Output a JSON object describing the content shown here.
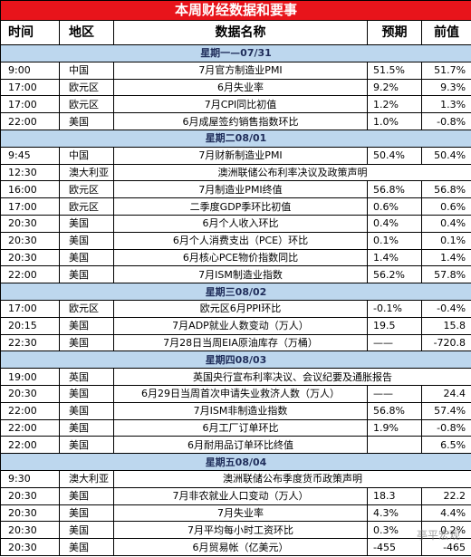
{
  "title": "本周财经数据和要事",
  "header": [
    "时间",
    "地区",
    "数据名称",
    "预期",
    "前值"
  ],
  "days": [
    {
      "label": "星期一—07/31",
      "rows": [
        [
          "9:00",
          "中国",
          "7月官方制造业PMI",
          "51.5%",
          "51.7%"
        ],
        [
          "17:00",
          "欧元区",
          "6月失业率",
          "9.2%",
          "9.3%"
        ],
        [
          "17:00",
          "欧元区",
          "7月CPI同比初值",
          "1.2%",
          "1.3%"
        ],
        [
          "22:00",
          "美国",
          "6月成屋签约销售指数环比",
          "1.0%",
          "-0.8%"
        ]
      ]
    },
    {
      "label": "星期二08/01",
      "rows": [
        [
          "9:45",
          "中国",
          "7月财新制造业PMI",
          "50.4%",
          "50.4%"
        ],
        [
          "12:30",
          "澳大利亚",
          "澳洲联储公布利率决议及政策声明"
        ],
        [
          "16:00",
          "欧元区",
          "7月制造业PMI终值",
          "56.8%",
          "56.8%"
        ],
        [
          "17:00",
          "欧元区",
          "二季度GDP季环比初值",
          "0.6%",
          "0.6%"
        ],
        [
          "20:30",
          "美国",
          "6月个人收入环比",
          "0.4%",
          "0.4%"
        ],
        [
          "20:30",
          "美国",
          "6月个人消费支出（PCE）环比",
          "0.1%",
          "0.1%"
        ],
        [
          "20:30",
          "美国",
          "6月核心PCE物价指数同比",
          "1.4%",
          "1.4%"
        ],
        [
          "22:00",
          "美国",
          "7月ISM制造业指数",
          "56.2%",
          "57.8%"
        ]
      ]
    },
    {
      "label": "星期三08/02",
      "rows": [
        [
          "17:00",
          "欧元区",
          "欧元区6月PPI环比",
          "-0.1%",
          "-0.4%"
        ],
        [
          "20:15",
          "美国",
          "7月ADP就业人数变动（万人）",
          "19.5",
          "15.8"
        ],
        [
          "22:30",
          "美国",
          "7月28日当周EIA原油库存（万桶）",
          "——",
          "-720.8"
        ]
      ]
    },
    {
      "label": "星期四08/03",
      "rows": [
        [
          "19:00",
          "英国",
          "英国央行宣布利率决议、会议纪要及通胀报告"
        ],
        [
          "20:30",
          "美国",
          "6月29日当周首次申请失业救济人数（万人）",
          "——",
          "24.4"
        ],
        [
          "22:00",
          "美国",
          "7月ISM非制造业指数",
          "56.8%",
          "57.4%"
        ],
        [
          "22:00",
          "美国",
          "6月工厂订单环比",
          "1.9%",
          "-0.8%"
        ],
        [
          "22:00",
          "美国",
          "6月耐用品订单环比终值",
          null,
          "6.5%"
        ]
      ]
    },
    {
      "label": "星期五08/04",
      "rows": [
        [
          "9:30",
          "澳大利亚",
          "澳洲联储公布季度货币政策声明"
        ],
        [
          "20:30",
          "美国",
          "7月非农就业人口变动（万人）",
          "18.3",
          "22.2"
        ],
        [
          "20:30",
          "美国",
          "7月失业率",
          "4.3%",
          "4.4%"
        ],
        [
          "20:30",
          "美国",
          "7月平均每小时工资环比",
          "0.3%",
          "0.2%"
        ],
        [
          "20:30",
          "美国",
          "6月贸易帐（亿美元）",
          "-455",
          "-465"
        ]
      ]
    }
  ],
  "watermark": "亭平宏观"
}
